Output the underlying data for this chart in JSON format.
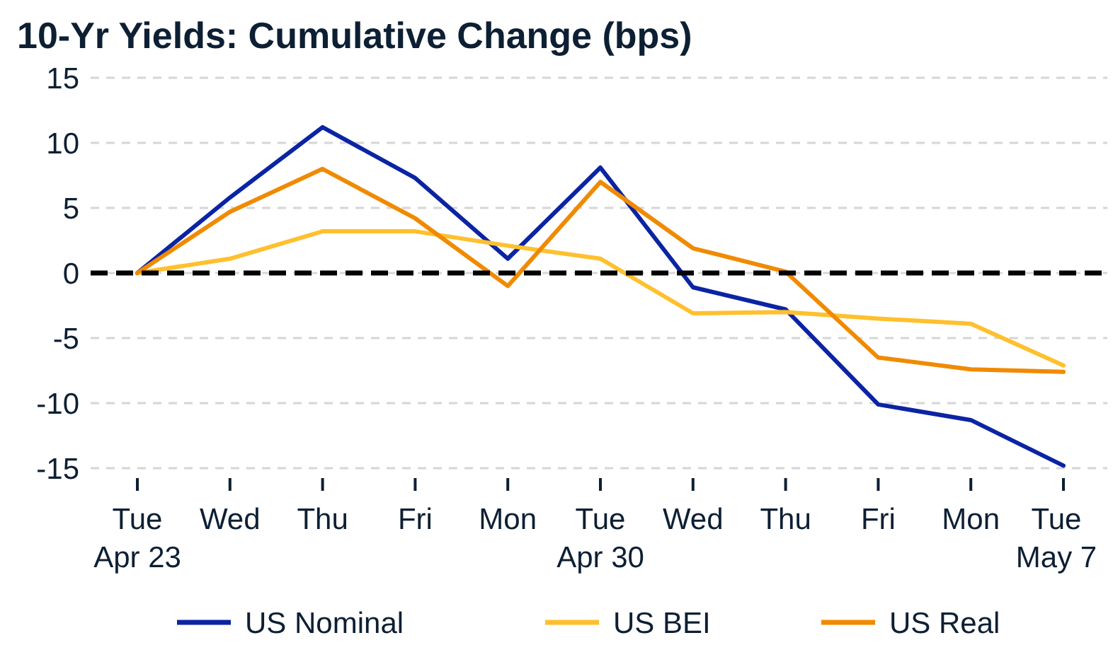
{
  "chart_data": {
    "type": "line",
    "title": "10-Yr Yields: Cumulative Change (bps)",
    "categories": [
      "Tue\nApr 23",
      "Wed",
      "Thu",
      "Fri",
      "Mon",
      "Tue\nApr 30",
      "Wed",
      "Thu",
      "Fri",
      "Mon",
      "Tue\nMay 7"
    ],
    "series": [
      {
        "name": "US Nominal",
        "color": "#0b24a3",
        "values": [
          0,
          5.8,
          11.2,
          7.3,
          1.1,
          8.1,
          -1.1,
          -2.8,
          -10.1,
          -11.3,
          -14.8
        ]
      },
      {
        "name": "US BEI",
        "color": "#ffc02e",
        "values": [
          0,
          1.1,
          3.2,
          3.2,
          2.1,
          1.1,
          -3.1,
          -3.0,
          -3.5,
          -3.9,
          -7.1
        ]
      },
      {
        "name": "US Real",
        "color": "#f08a00",
        "values": [
          0,
          4.7,
          8.0,
          4.2,
          -1.0,
          7.0,
          1.9,
          0.1,
          -6.5,
          -7.4,
          -7.6
        ]
      }
    ],
    "ylim": [
      -15,
      15
    ],
    "yticks": [
      -15,
      -10,
      -5,
      0,
      5,
      10,
      15
    ],
    "grid": "y",
    "legend": "bottom",
    "ref_lines": [
      {
        "axis": "y",
        "value": 0,
        "color": "#000000",
        "line_style": "dashed"
      }
    ]
  }
}
